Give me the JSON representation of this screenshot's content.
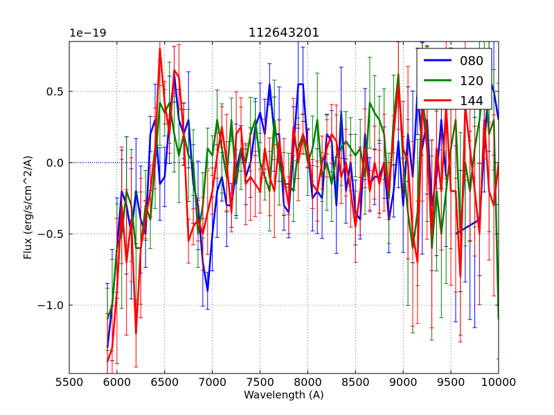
{
  "chart_data": {
    "type": "line",
    "title": "112643201",
    "xlabel": "Wavelength (A)",
    "ylabel": "Flux (erg/s/cm^2/A)",
    "y_multiplier": "1e−19",
    "xlim": [
      5500,
      10000
    ],
    "ylim": [
      -1.48,
      0.85
    ],
    "xticks": [
      5500,
      6000,
      6500,
      7000,
      7500,
      8000,
      8500,
      9000,
      9500,
      10000
    ],
    "xtick_labels": [
      "5500",
      "6000",
      "6500",
      "7000",
      "7500",
      "8000",
      "8500",
      "9000",
      "9500",
      "10000"
    ],
    "yticks": [
      -1.0,
      -0.5,
      0.0,
      0.5
    ],
    "ytick_labels": [
      "−1.0",
      "−0.5",
      "0.0",
      "0.5"
    ],
    "grid": true,
    "legend_position": "top-right",
    "error_bars": true,
    "x": [
      5900,
      5950,
      6000,
      6050,
      6100,
      6150,
      6200,
      6250,
      6300,
      6350,
      6400,
      6450,
      6500,
      6550,
      6600,
      6650,
      6700,
      6750,
      6800,
      6850,
      6900,
      6950,
      7000,
      7050,
      7100,
      7150,
      7200,
      7250,
      7300,
      7350,
      7400,
      7450,
      7500,
      7550,
      7600,
      7650,
      7700,
      7750,
      7800,
      7850,
      7900,
      7950,
      8000,
      8050,
      8100,
      8150,
      8200,
      8250,
      8300,
      8350,
      8400,
      8450,
      8500,
      8550,
      8600,
      8650,
      8700,
      8750,
      8800,
      8850,
      8900,
      8950,
      9000,
      9050,
      9100,
      9150,
      9200,
      9250,
      9300,
      9350,
      9400,
      9450,
      9500,
      9550,
      9600,
      9650,
      9700,
      9750,
      9800,
      9850,
      9900,
      9950,
      10000
    ],
    "series": [
      {
        "name": "080",
        "color": "#0000ff",
        "values": [
          -1.3,
          -1.0,
          -0.6,
          -0.2,
          -0.3,
          -0.5,
          -0.2,
          -0.4,
          -0.5,
          0.2,
          0.3,
          -0.15,
          -0.1,
          0.3,
          0.62,
          0.3,
          0.2,
          0.3,
          -0.15,
          -0.3,
          -0.7,
          -0.9,
          -0.5,
          -0.2,
          -0.1,
          -0.3,
          -0.3,
          -0.05,
          0.1,
          -0.1,
          0.0,
          0.25,
          0.35,
          0.2,
          0.55,
          0.2,
          0.2,
          -0.3,
          -0.35,
          0.1,
          0.55,
          0.55,
          0.1,
          -0.25,
          -0.2,
          -0.25,
          0.2,
          0.15,
          -0.3,
          0.35,
          -0.2,
          0.0,
          -0.35,
          -0.4,
          0.2,
          -0.15,
          -0.1,
          -0.1,
          0.0,
          -0.4,
          -0.2,
          0.15,
          -0.3,
          0.2,
          -0.1,
          0.5,
          0.1,
          0.3,
          -0.3,
          -0.1,
          0.3,
          -0.1,
          null,
          -0.5,
          -0.48,
          -0.46,
          -0.44,
          -0.42,
          -0.4,
          0.1,
          0.6,
          0.5,
          0.3
        ]
      },
      {
        "name": "120",
        "color": "#008000",
        "values": [
          -1.1,
          -1.0,
          -0.6,
          -0.5,
          -0.2,
          -0.3,
          -0.6,
          -0.6,
          -0.3,
          -0.4,
          0.0,
          0.42,
          0.35,
          0.42,
          0.2,
          0.05,
          0.2,
          0.05,
          0.0,
          -0.5,
          -0.3,
          0.1,
          0.05,
          0.3,
          0.1,
          -0.1,
          0.3,
          -0.15,
          0.1,
          0.0,
          0.2,
          0.3,
          0.0,
          -0.1,
          -0.2,
          0.3,
          0.0,
          -0.15,
          -0.15,
          -0.2,
          0.1,
          0.2,
          0.0,
          0.1,
          0.3,
          -0.1,
          0.0,
          -0.15,
          0.05,
          0.1,
          0.15,
          0.1,
          0.05,
          0.1,
          -0.1,
          0.42,
          0.35,
          0.3,
          0.2,
          -0.25,
          0.3,
          0.62,
          0.0,
          -0.35,
          -0.6,
          -0.35,
          0.45,
          0.2,
          -0.6,
          -0.2,
          -0.5,
          -0.2,
          0.1,
          0.3,
          -0.5,
          0.0,
          -0.2,
          0.1,
          0.3,
          0.62,
          0.2,
          0.3,
          -1.1
        ]
      },
      {
        "name": "144",
        "color": "#ff0000",
        "values": [
          -1.4,
          -1.3,
          -0.9,
          -0.3,
          -0.7,
          -0.4,
          -1.2,
          -0.6,
          -0.4,
          -0.2,
          0.1,
          0.8,
          0.42,
          0.2,
          0.65,
          0.6,
          0.2,
          -0.55,
          -0.45,
          -0.4,
          -0.5,
          -0.35,
          -0.2,
          0.05,
          0.25,
          0.0,
          -0.35,
          0.2,
          0.25,
          -0.15,
          -0.1,
          -0.15,
          -0.2,
          0.1,
          -0.1,
          -0.2,
          0.15,
          -0.1,
          -0.3,
          0.25,
          0.0,
          0.2,
          0.1,
          -0.15,
          -0.2,
          0.0,
          0.1,
          0.2,
          0.15,
          -0.1,
          0.0,
          -0.2,
          -0.45,
          -0.2,
          0.1,
          -0.2,
          0.0,
          -0.15,
          0.0,
          -0.2,
          0.2,
          0.55,
          0.1,
          0.0,
          -0.5,
          -0.7,
          0.4,
          0.1,
          -0.5,
          0.1,
          -0.2,
          0.4,
          -0.2,
          -0.2,
          -0.8,
          0.4,
          0.1,
          -0.2,
          -0.5,
          0.3,
          -0.2,
          -0.3,
          0.0
        ]
      }
    ]
  }
}
